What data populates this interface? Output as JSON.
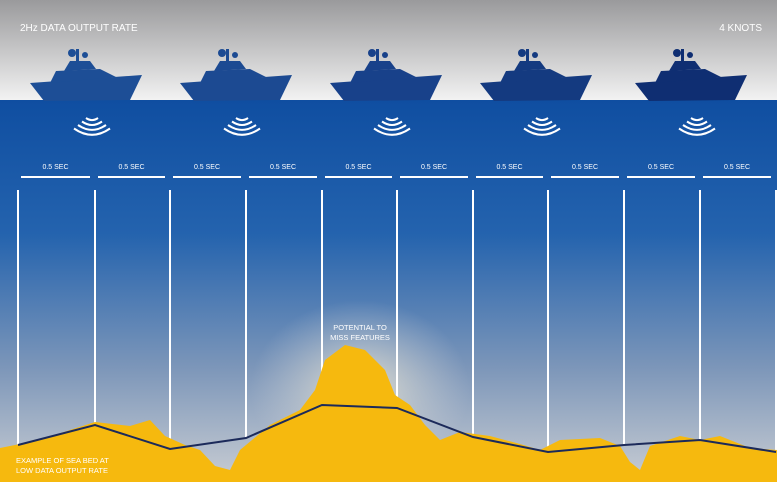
{
  "header": {
    "title": "2Hz DATA OUTPUT RATE",
    "speed": "4 KNOTS"
  },
  "intervals": [
    "0.5 SEC",
    "0.5 SEC",
    "0.5 SEC",
    "0.5 SEC",
    "0.5 SEC",
    "0.5 SEC",
    "0.5 SEC",
    "0.5 SEC",
    "0.5 SEC",
    "0.5 SEC"
  ],
  "annotations": {
    "feature": [
      "POTENTIAL TO",
      "MISS FEATURES"
    ],
    "seabed": [
      "EXAMPLE OF SEA BED AT",
      "LOW DATA OUTPUT RATE"
    ]
  }
}
